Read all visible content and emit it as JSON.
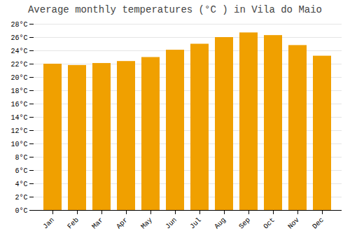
{
  "chart_data": {
    "type": "bar",
    "title": "Average monthly temperatures (°C ) in Vila do Maio",
    "categories": [
      "Jan",
      "Feb",
      "Mar",
      "Apr",
      "May",
      "Jun",
      "Jul",
      "Aug",
      "Sep",
      "Oct",
      "Nov",
      "Dec"
    ],
    "values": [
      22.0,
      21.8,
      22.1,
      22.4,
      23.0,
      24.1,
      25.0,
      26.0,
      26.7,
      26.3,
      24.8,
      23.2
    ],
    "color": "#F0A000",
    "ylim": [
      0,
      28
    ],
    "yticks": [
      {
        "value": 0,
        "label": "0°C"
      },
      {
        "value": 2,
        "label": "2°C"
      },
      {
        "value": 4,
        "label": "4°C"
      },
      {
        "value": 6,
        "label": "6°C"
      },
      {
        "value": 8,
        "label": "8°C"
      },
      {
        "value": 10,
        "label": "10°C"
      },
      {
        "value": 12,
        "label": "12°C"
      },
      {
        "value": 14,
        "label": "14°C"
      },
      {
        "value": 16,
        "label": "16°C"
      },
      {
        "value": 18,
        "label": "18°C"
      },
      {
        "value": 20,
        "label": "20°C"
      },
      {
        "value": 22,
        "label": "22°C"
      },
      {
        "value": 24,
        "label": "24°C"
      },
      {
        "value": 26,
        "label": "26°C"
      },
      {
        "value": 28,
        "label": "28°C"
      }
    ],
    "grid": true
  }
}
